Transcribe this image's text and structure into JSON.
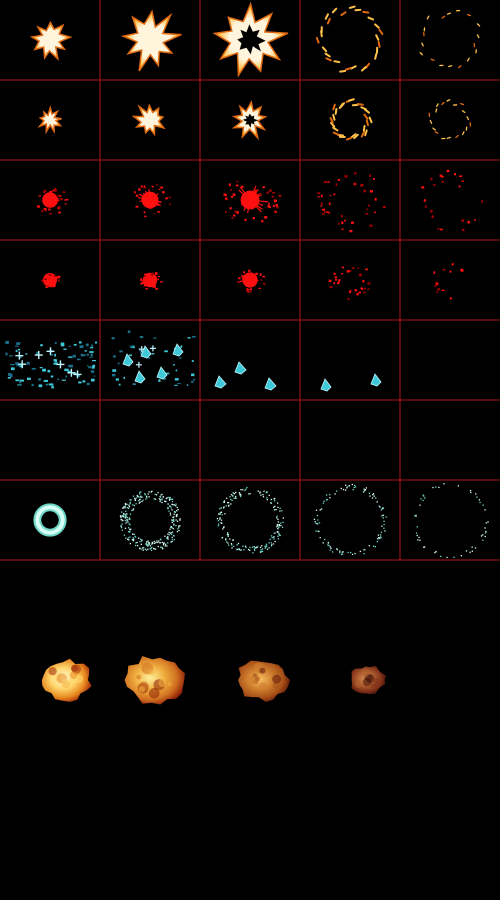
{
  "sheet": {
    "title": "",
    "background_color": "#000000",
    "grid_color": "#b01818",
    "columns": 5,
    "grid_rows": 7,
    "rows": [
      {
        "name": "explosion-large",
        "kind": "starburst",
        "frames": [
          {
            "style": "solid",
            "scale": 0.55
          },
          {
            "style": "solid",
            "scale": 0.85
          },
          {
            "style": "holed",
            "scale": 1.0
          },
          {
            "style": "outline",
            "scale": 1.0
          },
          {
            "style": "sparse",
            "scale": 0.95
          }
        ]
      },
      {
        "name": "explosion-small",
        "kind": "starburst",
        "frames": [
          {
            "style": "solid",
            "scale": 0.32
          },
          {
            "style": "solid",
            "scale": 0.45
          },
          {
            "style": "holed",
            "scale": 0.5
          },
          {
            "style": "outline",
            "scale": 0.6
          },
          {
            "style": "sparse",
            "scale": 0.62
          }
        ]
      },
      {
        "name": "blood-splatter-large",
        "kind": "splat",
        "frames": [
          {
            "density": 1.0,
            "spread": 0.45
          },
          {
            "density": 1.0,
            "spread": 0.6
          },
          {
            "density": 1.0,
            "spread": 0.85
          },
          {
            "density": 0.45,
            "spread": 1.0
          },
          {
            "density": 0.25,
            "spread": 1.0
          }
        ]
      },
      {
        "name": "blood-splatter-small",
        "kind": "splat",
        "frames": [
          {
            "density": 1.0,
            "spread": 0.25
          },
          {
            "density": 1.0,
            "spread": 0.3
          },
          {
            "density": 0.9,
            "spread": 0.4
          },
          {
            "density": 0.45,
            "spread": 0.6
          },
          {
            "density": 0.2,
            "spread": 0.6
          }
        ]
      },
      {
        "name": "ice-shatter",
        "kind": "shards",
        "frames": [
          {
            "fragments": "dense"
          },
          {
            "fragments": "chunks"
          },
          {
            "fragments": "few"
          },
          {
            "fragments": "two"
          },
          {
            "fragments": "none"
          }
        ]
      },
      {
        "name": "empty-row",
        "kind": "empty",
        "frames": [
          {},
          {},
          {},
          {},
          {}
        ]
      },
      {
        "name": "shockwave-ring",
        "kind": "ring",
        "frames": [
          {
            "radius": 0.22,
            "fill": 1.0
          },
          {
            "radius": 0.32,
            "fill": 0.7
          },
          {
            "radius": 0.37,
            "fill": 0.45
          },
          {
            "radius": 0.42,
            "fill": 0.25
          },
          {
            "radius": 0.45,
            "fill": 0.12
          }
        ]
      }
    ],
    "fire_row": {
      "name": "fire-cloud",
      "frames": [
        {
          "scale": 0.85,
          "palette": [
            "#fff8d8",
            "#ffd870",
            "#e88a20",
            "#a02808"
          ]
        },
        {
          "scale": 1.0,
          "palette": [
            "#fff0a0",
            "#f0b040",
            "#d07020",
            "#902008"
          ]
        },
        {
          "scale": 0.85,
          "palette": [
            "#f8c060",
            "#d08030",
            "#a85018",
            "#601808"
          ]
        },
        {
          "scale": 0.6,
          "palette": [
            "#d89060",
            "#b06030",
            "#803018",
            "#401008"
          ]
        }
      ]
    },
    "colors": {
      "explosion_core": "#fff4dc",
      "explosion_mid": "#ffc24a",
      "explosion_edge": "#e06a10",
      "blood": "#ff1010",
      "blood_dark": "#a00000",
      "ice_light": "#bff8ff",
      "ice_mid": "#3ec8d8",
      "ice_dark": "#1a6f8a",
      "ring_light": "#d8fff4",
      "ring_mid": "#6fd8c8"
    }
  }
}
